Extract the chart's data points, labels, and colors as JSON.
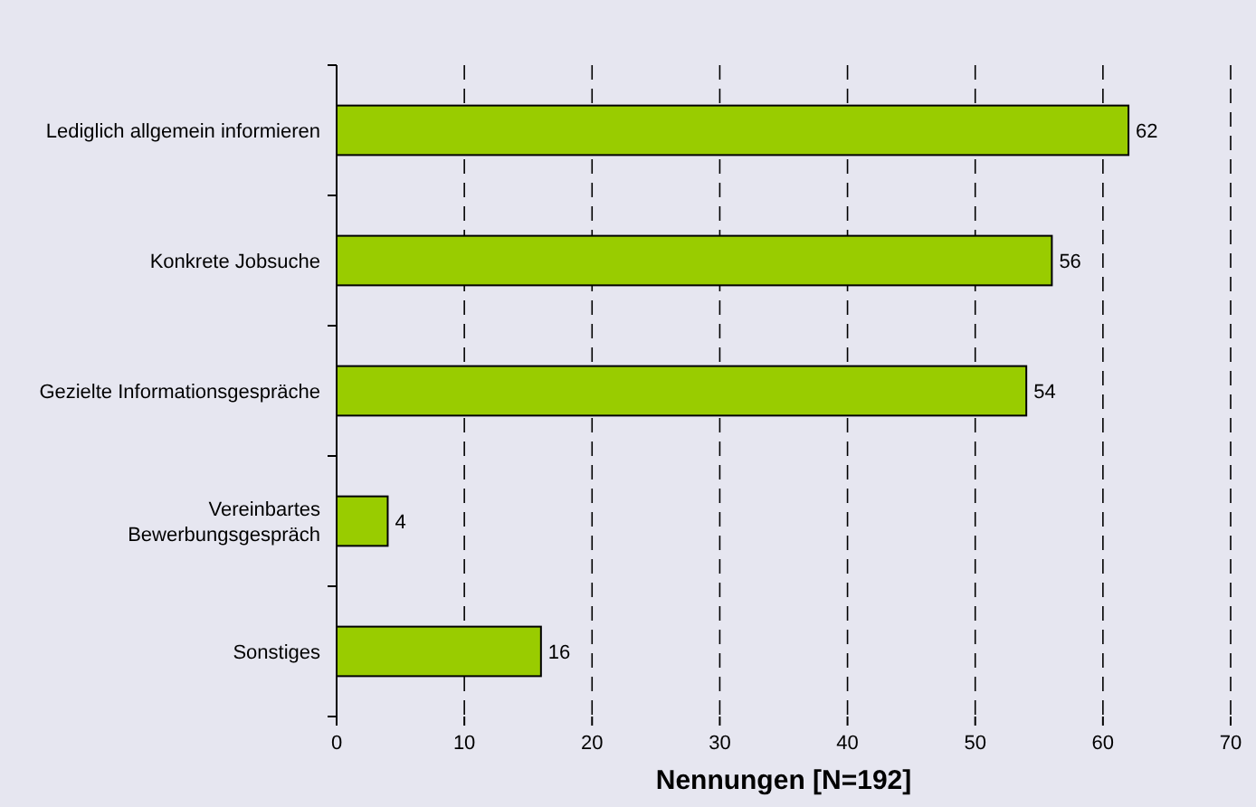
{
  "chart_data": {
    "type": "bar",
    "orientation": "horizontal",
    "xlabel": "Nennungen [N=192]",
    "categories": [
      "Lediglich allgemein informieren",
      "Konkrete Jobsuche",
      "Gezielte Informationsgespräche",
      "Vereinbartes\nBewerbungsgespräch",
      "Sonstiges"
    ],
    "values": [
      62,
      56,
      54,
      4,
      16
    ],
    "color": "#99cc00",
    "data_labels": true,
    "xlim": [
      0,
      70
    ],
    "xticks": [
      0,
      10,
      20,
      30,
      40,
      50,
      60,
      70
    ],
    "grid": "x"
  }
}
